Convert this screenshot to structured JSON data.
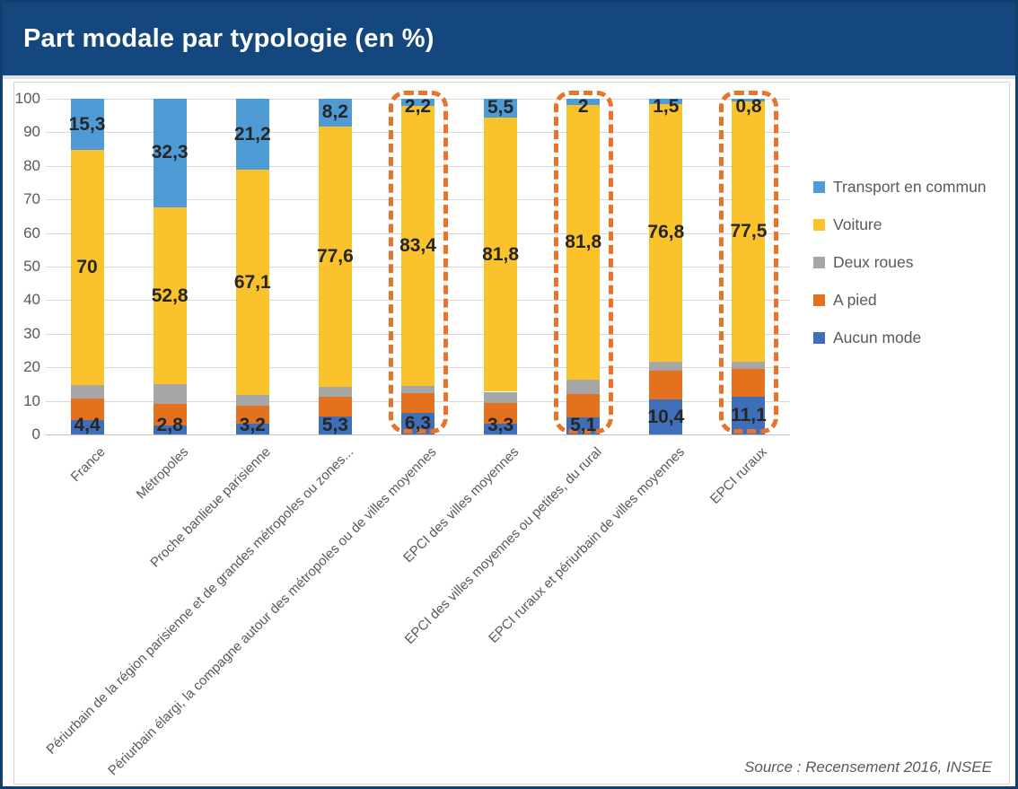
{
  "header": {
    "title": "Part modale par typologie (en %)"
  },
  "footer": {
    "source": "Source : Recensement 2016, INSEE"
  },
  "colors": {
    "header_bg": "#14477E",
    "outer_border": "#11406F",
    "gridline": "#D9D9D9",
    "axis_text": "#595959",
    "data_label_text": "#262626",
    "highlight_dash": "#E8742C",
    "transport_en_commun": "#4E9BD5",
    "voiture": "#FAC32C",
    "deux_roues": "#A6A6A6",
    "a_pied": "#E4711E",
    "aucun_mode": "#3E6FB8"
  },
  "chart_data": {
    "type": "bar",
    "stacked": true,
    "unit": "%",
    "title": "Part modale par typologie (en %)",
    "ylim": [
      0,
      100
    ],
    "yticks": [
      0,
      10,
      20,
      30,
      40,
      50,
      60,
      70,
      80,
      90,
      100
    ],
    "grid": true,
    "legend_position": "right",
    "categories": [
      "France",
      "Métropoles",
      "Proche banlieue parisienne",
      "Périurbain de la région parisienne et de grandes métropoles ou zones...",
      "Périurbain élargi, la compagne autour des métropoles ou de villes moyennes",
      "EPCI des villes moyennes",
      "EPCI des villes moyennes ou petites, du rural",
      "EPCI ruraux et périurbain de villes moyennes",
      "EPCI ruraux"
    ],
    "series": [
      {
        "name": "Aucun mode",
        "color_key": "aucun_mode",
        "show_labels": true,
        "values": [
          4.4,
          2.8,
          3.2,
          5.3,
          6.3,
          3.3,
          5.1,
          10.4,
          11.1
        ]
      },
      {
        "name": "A pied",
        "color_key": "a_pied",
        "show_labels": false,
        "values": [
          6.3,
          6.3,
          5.4,
          6.0,
          6.1,
          6.0,
          7.0,
          8.6,
          8.3
        ]
      },
      {
        "name": "Deux roues",
        "color_key": "deux_roues",
        "show_labels": false,
        "values": [
          4.0,
          5.8,
          3.1,
          2.9,
          2.0,
          3.4,
          4.1,
          2.7,
          2.3
        ]
      },
      {
        "name": "Voiture",
        "color_key": "voiture",
        "show_labels": true,
        "values": [
          70,
          52.8,
          67.1,
          77.6,
          83.4,
          81.8,
          81.8,
          76.8,
          77.5
        ]
      },
      {
        "name": "Transport en commun",
        "color_key": "transport_en_commun",
        "show_labels": true,
        "values": [
          15.3,
          32.3,
          21.2,
          8.2,
          2.2,
          5.5,
          2,
          1.5,
          0.8
        ]
      }
    ],
    "legend": [
      "Transport en commun",
      "Voiture",
      "Deux roues",
      "A pied",
      "Aucun mode"
    ],
    "highlighted_category_indices": [
      4,
      6,
      8
    ]
  }
}
